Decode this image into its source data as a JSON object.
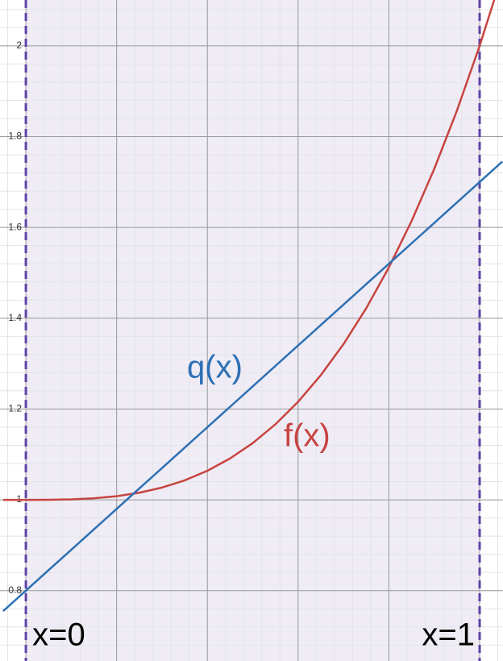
{
  "chart_data": {
    "type": "line",
    "x": [
      -0.05,
      0,
      0.05,
      0.1,
      0.15,
      0.2,
      0.25,
      0.3,
      0.35,
      0.4,
      0.45,
      0.5,
      0.55,
      0.6,
      0.65,
      0.7,
      0.75,
      0.8,
      0.85,
      0.9,
      0.95,
      1,
      1.05
    ],
    "series": [
      {
        "name": "f(x)",
        "color": "#c74440",
        "values": [
          0.9999,
          1,
          1.0001,
          1.001,
          1.0034,
          1.008,
          1.0156,
          1.027,
          1.0429,
          1.064,
          1.0911,
          1.125,
          1.1664,
          1.216,
          1.2746,
          1.343,
          1.4219,
          1.512,
          1.6141,
          1.729,
          1.8574,
          2,
          2.1576
        ]
      },
      {
        "name": "q(x)",
        "color": "#2d70b3",
        "values": [
          0.755,
          0.8,
          0.845,
          0.89,
          0.935,
          0.98,
          1.025,
          1.07,
          1.115,
          1.16,
          1.205,
          1.25,
          1.295,
          1.34,
          1.385,
          1.43,
          1.475,
          1.52,
          1.565,
          1.61,
          1.655,
          1.7,
          1.745
        ]
      }
    ],
    "vlines": [
      {
        "value": 0,
        "label": "x=0"
      },
      {
        "value": 1,
        "label": "x=1"
      }
    ],
    "vline_color": "#6042a6",
    "xlim": [
      -0.057,
      1.0515
    ],
    "ylim": [
      0.645,
      2.101
    ],
    "xticks": [
      0,
      0.2,
      0.4,
      0.6,
      0.8,
      1
    ],
    "yticks": [
      0.8,
      1,
      1.2,
      1.4,
      1.6,
      1.8,
      2
    ],
    "grid": true
  }
}
